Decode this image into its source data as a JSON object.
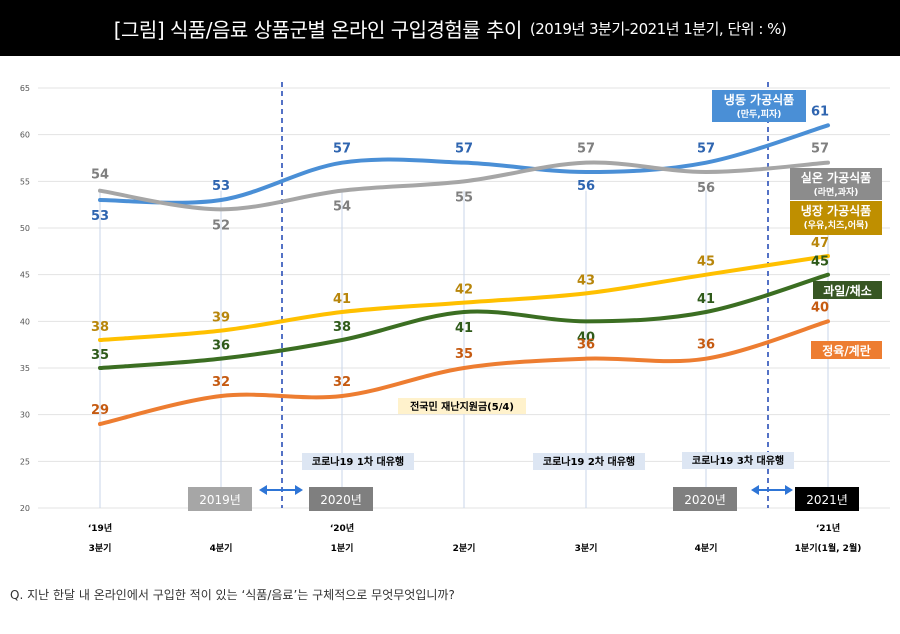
{
  "title": "[그림] 식품/음료 상품군별 온라인 구입경험률 추이",
  "subtitle": "(2019년 3분기-2021년 1분기, 단위 : %)",
  "footnote": "Q. 지난 한달 내 온라인에서 구입한 적이 있는 ‘식품/음료’는 구체적으로 무엇무엇입니까?",
  "chart_data": {
    "type": "line",
    "categories": [
      "3분기",
      "4분기",
      "1분기",
      "2분기",
      "3분기",
      "4분기",
      "1분기(1월, 2월)"
    ],
    "year_labels": [
      "‘19년",
      "",
      "‘20년",
      "",
      "",
      "",
      "‘21년"
    ],
    "ylim": [
      20,
      65
    ],
    "yticks": [
      "20",
      "25",
      "30",
      "35",
      "40",
      "45",
      "50",
      "55",
      "60",
      "65"
    ],
    "grid": "horizontal",
    "series": [
      {
        "name": "냉동 가공식품",
        "sub": "(만두,피자)",
        "color": "#4a8fd6",
        "label_color": "#2f65b0",
        "values": [
          53,
          53,
          57,
          57,
          56,
          57,
          61
        ],
        "display": [
          "53",
          "53",
          "57",
          "57",
          "56",
          "57",
          "61"
        ]
      },
      {
        "name": "실온 가공식품",
        "sub": "(라면,과자)",
        "color": "#a6a6a6",
        "label_color": "#7f7f7f",
        "values": [
          54,
          52,
          54,
          55,
          57,
          56,
          57
        ],
        "display": [
          "54",
          "52",
          "54",
          "55",
          "57",
          "56",
          "57"
        ]
      },
      {
        "name": "냉장 가공식품",
        "sub": "(우유,치즈,어묵)",
        "color": "#ffc000",
        "label_color": "#b8860b",
        "values": [
          38,
          39,
          41,
          42,
          43,
          45,
          47
        ],
        "display": [
          "38",
          "39",
          "41",
          "42",
          "43",
          "45",
          "47"
        ]
      },
      {
        "name": "과일/채소",
        "sub": "",
        "color": "#3b6e22",
        "label_color": "#2e5a1a",
        "values": [
          35,
          36,
          38,
          41,
          40,
          41,
          45
        ],
        "display": [
          "35",
          "36",
          "38",
          "41",
          "40",
          "41",
          "45"
        ]
      },
      {
        "name": "정육/계란",
        "sub": "",
        "color": "#ed7d31",
        "label_color": "#c55a11",
        "values": [
          29,
          32,
          32,
          35,
          36,
          36,
          40
        ],
        "display": [
          "29",
          "32",
          "32",
          "35",
          "36",
          "36",
          "40"
        ]
      }
    ],
    "annotations": {
      "relief_fund": "전국민 재난지원금(5/4)",
      "wave1": "코로나19 1차 대유행",
      "wave2": "코로나19 2차 대유행",
      "wave3": "코로나19 3차 대유행",
      "year_tag_2019": "2019년",
      "year_tag_2020a": "2020년",
      "year_tag_2020b": "2020년",
      "year_tag_2021": "2021년"
    }
  }
}
